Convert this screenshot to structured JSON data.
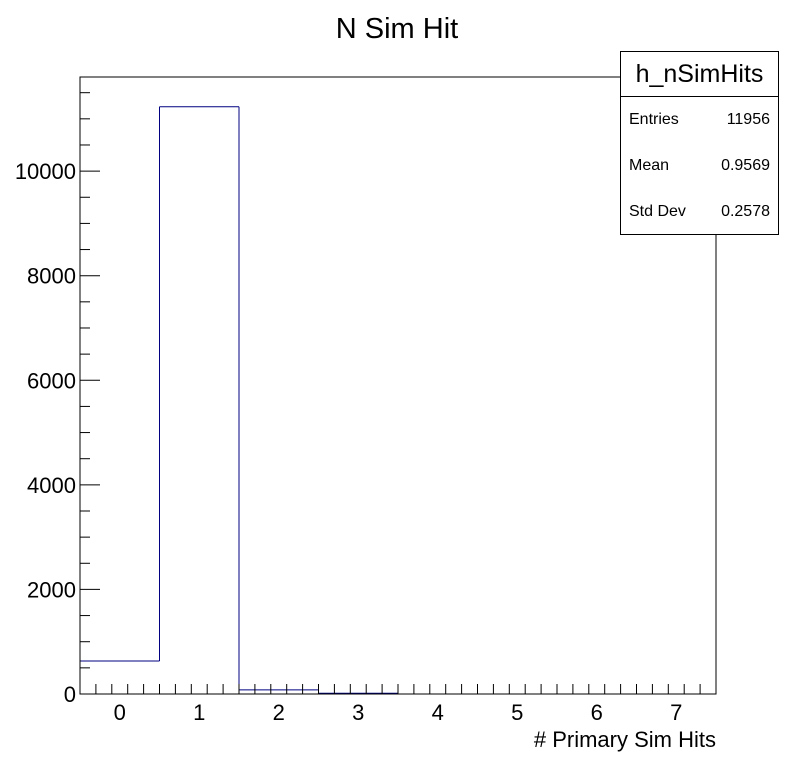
{
  "chart_data": {
    "type": "bar",
    "title": "N Sim Hit",
    "xlabel": "# Primary Sim Hits",
    "ylabel": "",
    "bin_centers": [
      0,
      1,
      2,
      3,
      4,
      5,
      6,
      7
    ],
    "bin_width": 1,
    "values": [
      630,
      11230,
      80,
      15,
      0,
      0,
      0,
      0
    ],
    "xlim": [
      -0.5,
      7.5
    ],
    "ylim": [
      0,
      11800
    ],
    "xticks": [
      0,
      1,
      2,
      3,
      4,
      5,
      6,
      7
    ],
    "yticks": [
      0,
      2000,
      4000,
      6000,
      8000,
      10000
    ],
    "line_color": "#000080",
    "grid": false,
    "legend": "none"
  },
  "stats": {
    "name": "h_nSimHits",
    "rows": [
      {
        "label": "Entries",
        "value": "11956"
      },
      {
        "label": "Mean",
        "value": "0.9569"
      },
      {
        "label": "Std Dev",
        "value": "0.2578"
      }
    ]
  }
}
